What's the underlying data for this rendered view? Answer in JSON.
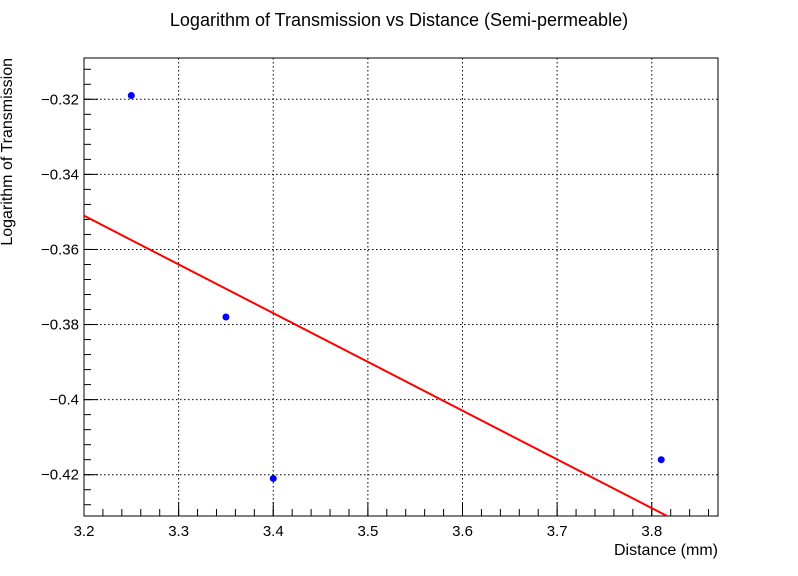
{
  "chart_data": {
    "type": "scatter",
    "title": "Logarithm of Transmission vs Distance (Semi-permeable)",
    "xlabel": "Distance (mm)",
    "ylabel": "Logarithm of Transmission",
    "xlim": [
      3.2,
      3.87
    ],
    "ylim": [
      -0.431,
      -0.309
    ],
    "grid": true,
    "x_ticks": [
      3.2,
      3.3,
      3.4,
      3.5,
      3.6,
      3.7,
      3.8
    ],
    "x_tick_labels": [
      "3.2",
      "3.3",
      "3.4",
      "3.5",
      "3.6",
      "3.7",
      "3.8"
    ],
    "y_ticks": [
      -0.32,
      -0.34,
      -0.36,
      -0.38,
      -0.4,
      -0.42
    ],
    "y_tick_labels": [
      "−0.32",
      "−0.34",
      "−0.36",
      "−0.38",
      "−0.4",
      "−0.42"
    ],
    "series": [
      {
        "type": "scatter",
        "color": "#0000ff",
        "x": [
          3.25,
          3.35,
          3.4,
          3.81
        ],
        "y": [
          -0.319,
          -0.378,
          -0.421,
          -0.416
        ]
      },
      {
        "type": "line",
        "color": "#ff0000",
        "x": [
          3.2,
          3.82
        ],
        "y": [
          -0.351,
          -0.4315
        ]
      }
    ]
  }
}
